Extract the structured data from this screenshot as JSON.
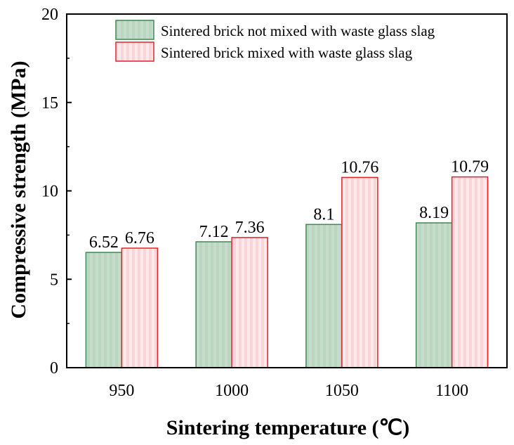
{
  "chart_data": {
    "type": "bar",
    "xlabel": "Sintering temperature (℃)",
    "ylabel": "Compressive strength (MPa)",
    "categories": [
      "950",
      "1000",
      "1050",
      "1100"
    ],
    "ylim": [
      0,
      20
    ],
    "yticks": [
      "0",
      "5",
      "10",
      "15",
      "20"
    ],
    "series": [
      {
        "name": "Sintered brick not mixed with waste glass slag",
        "values": [
          6.52,
          7.12,
          8.1,
          8.19
        ],
        "labels": [
          "6.52",
          "7.12",
          "8.1",
          "8.19"
        ],
        "fill": "#b9d6c0",
        "stroke": "#3f8a55"
      },
      {
        "name": "Sintered brick mixed with waste glass slag",
        "values": [
          6.76,
          7.36,
          10.76,
          10.79
        ],
        "labels": [
          "6.76",
          "7.36",
          "10.76",
          "10.79"
        ],
        "fill": "#fadadd",
        "stroke": "#e2232a"
      }
    ],
    "legend_position": "top-right",
    "grid": false
  }
}
